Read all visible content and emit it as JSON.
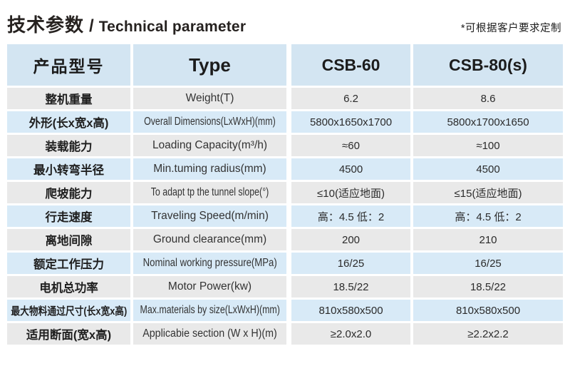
{
  "page": {
    "title_cn": "技术参数",
    "title_slash": "/",
    "title_en": "Technical parameter",
    "note": "*可根据客户要求定制"
  },
  "colors": {
    "row_blue": "#d8eaf7",
    "row_gray": "#e9e9e9",
    "header_blue": "#d3e5f2"
  },
  "table": {
    "header": {
      "col1": "产品型号",
      "col2": "Type",
      "col3": "CSB-60",
      "col4": "CSB-80(s)"
    },
    "rows": [
      {
        "cn": "整机重量",
        "en": "Weight(T)",
        "v1": "6.2",
        "v2": "8.6"
      },
      {
        "cn": "外形(长x宽x高)",
        "en": "Overall Dimensions(LxWxH)(mm)",
        "v1": "5800x1650x1700",
        "v2": "5800x1700x1650"
      },
      {
        "cn": "装载能力",
        "en": "Loading Capacity(m³/h)",
        "v1": "≈60",
        "v2": "≈100"
      },
      {
        "cn": "最小转弯半径",
        "en": "Min.tuming radius(mm)",
        "v1": "4500",
        "v2": "4500"
      },
      {
        "cn": "爬坡能力",
        "en": "To adapt tp the tunnel slope(°)",
        "v1": "≤10(适应地面)",
        "v2": "≤15(适应地面)"
      },
      {
        "cn": "行走速度",
        "en": "Traveling Speed(m/min)",
        "v1": "高：4.5 低：2",
        "v2": "高：4.5 低：2"
      },
      {
        "cn": "离地间隙",
        "en": "Ground clearance(mm)",
        "v1": "200",
        "v2": "210"
      },
      {
        "cn": "额定工作压力",
        "en": "Nominal working pressure(MPa)",
        "v1": "16/25",
        "v2": "16/25"
      },
      {
        "cn": "电机总功率",
        "en": "Motor Power(kw)",
        "v1": "18.5/22",
        "v2": "18.5/22"
      },
      {
        "cn": "最大物料通过尺寸(长x宽x高)",
        "en": "Max.materials by size(LxWxH)(mm)",
        "v1": "810x580x500",
        "v2": "810x580x500"
      },
      {
        "cn": "适用断面(宽x高)",
        "en": "Applicabie section (W x H)(m)",
        "v1": "≥2.0x2.0",
        "v2": "≥2.2x2.2"
      }
    ]
  }
}
